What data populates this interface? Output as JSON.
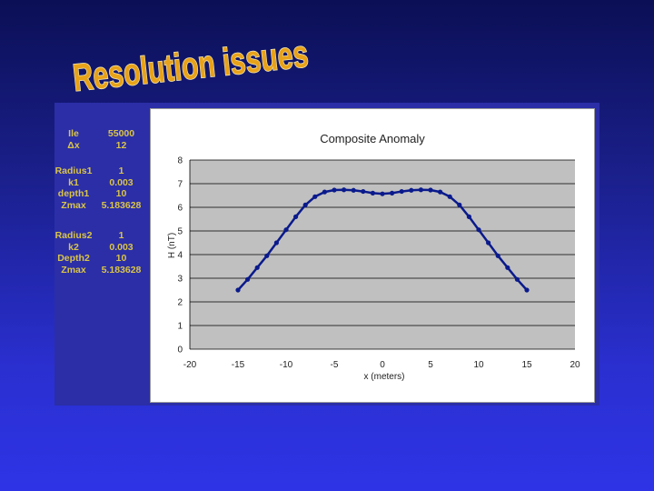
{
  "slide": {
    "title": "Resolution issues",
    "title_color": "#e8a21a",
    "title_outline": "#f3e7b0"
  },
  "params": {
    "group1": [
      {
        "name": "Ile",
        "value": "55000"
      },
      {
        "name": "Δx",
        "value": "12"
      }
    ],
    "group2": [
      {
        "name": "Radius1",
        "value": "1"
      },
      {
        "name": "k1",
        "value": "0.003"
      },
      {
        "name": "depth1",
        "value": "10"
      },
      {
        "name": "Zmax",
        "value": "5.183628"
      }
    ],
    "group3": [
      {
        "name": "Radius2",
        "value": "1"
      },
      {
        "name": "k2",
        "value": "0.003"
      },
      {
        "name": "Depth2",
        "value": "10"
      },
      {
        "name": "Zmax",
        "value": "5.183628"
      }
    ]
  },
  "chart_data": {
    "type": "line",
    "title": "Composite Anomaly",
    "xlabel": "x (meters)",
    "ylabel": "H (nT)",
    "xlim": [
      -20,
      20
    ],
    "ylim": [
      0,
      8
    ],
    "xticks": [
      "-20",
      "-15",
      "-10",
      "-5",
      "0",
      "5",
      "10",
      "15",
      "20"
    ],
    "yticks": [
      "0",
      "1",
      "2",
      "3",
      "4",
      "5",
      "6",
      "7",
      "8"
    ],
    "grid": true,
    "plot_bg": "#c0c0c0",
    "series": [
      {
        "color": "#0a1a8c",
        "x": [
          -15,
          -14,
          -13,
          -12,
          -11,
          -10,
          -9,
          -8,
          -7,
          -6,
          -5,
          -4,
          -3,
          -2,
          -1,
          0,
          1,
          2,
          3,
          4,
          5,
          6,
          7,
          8,
          9,
          10,
          11,
          12,
          13,
          14,
          15
        ],
        "y": [
          2.5,
          2.95,
          3.45,
          3.95,
          4.5,
          5.05,
          5.6,
          6.1,
          6.45,
          6.65,
          6.73,
          6.74,
          6.72,
          6.67,
          6.6,
          6.57,
          6.6,
          6.67,
          6.72,
          6.74,
          6.73,
          6.65,
          6.45,
          6.1,
          5.6,
          5.05,
          4.5,
          3.95,
          3.45,
          2.95,
          2.5
        ]
      }
    ]
  }
}
